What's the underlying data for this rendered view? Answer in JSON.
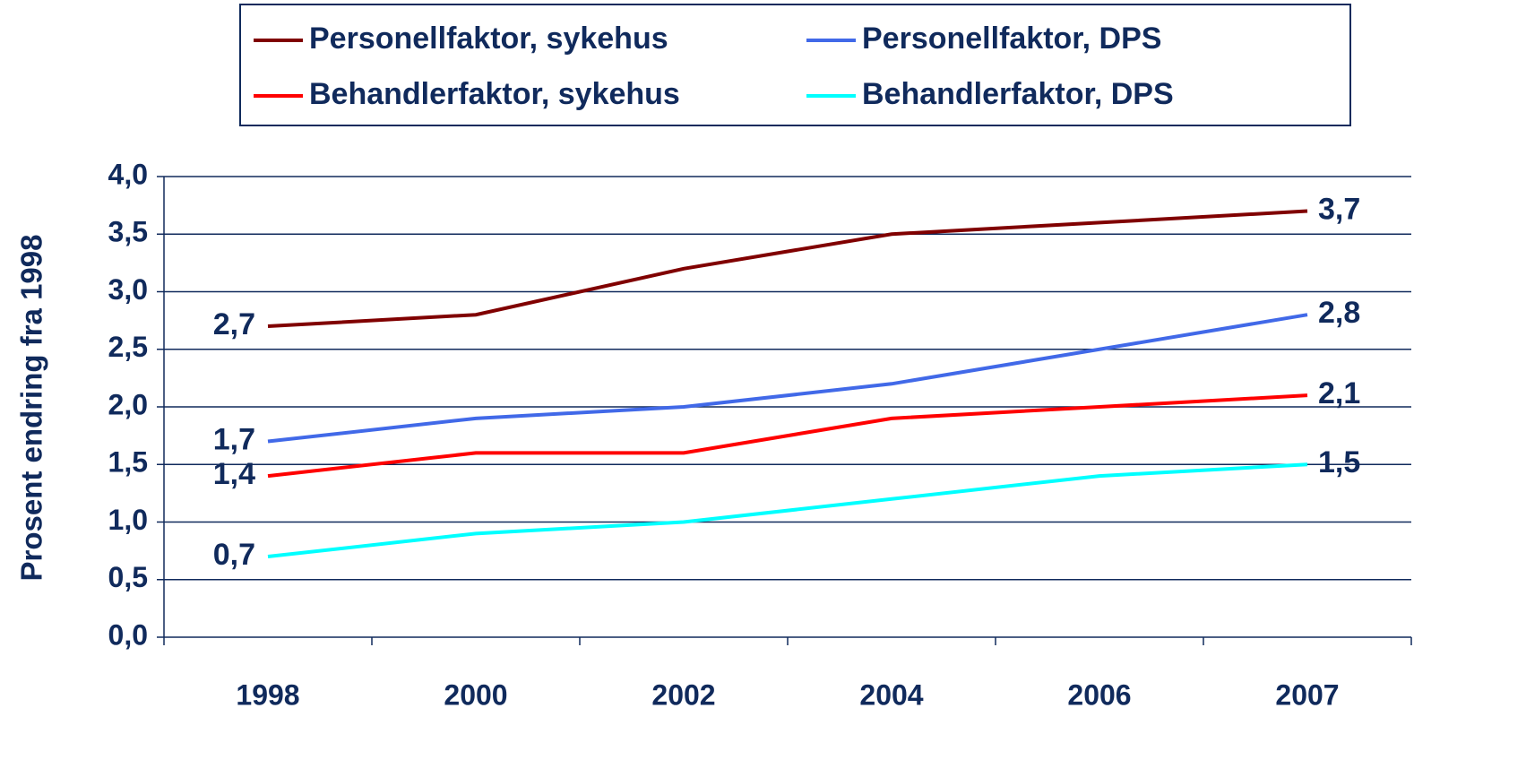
{
  "chart_data": {
    "type": "line",
    "y_label": "Prosent endring fra 1998",
    "categories": [
      "1998",
      "2000",
      "2002",
      "2004",
      "2006",
      "2007"
    ],
    "series": [
      {
        "name": "Personellfaktor, sykehus",
        "color": "#800000",
        "values": [
          2.7,
          2.8,
          3.2,
          3.5,
          3.6,
          3.7
        ],
        "value_labels": [
          "2,7",
          null,
          null,
          null,
          null,
          "3,7"
        ]
      },
      {
        "name": "Personellfaktor, DPS",
        "color": "#4169e8",
        "values": [
          1.7,
          1.9,
          2.0,
          2.2,
          2.5,
          2.8
        ],
        "value_labels": [
          "1,7",
          null,
          null,
          null,
          null,
          "2,8"
        ]
      },
      {
        "name": "Behandlerfaktor, sykehus",
        "color": "#ff0000",
        "values": [
          1.4,
          1.6,
          1.6,
          1.9,
          2.0,
          2.1
        ],
        "value_labels": [
          "1,4",
          null,
          null,
          null,
          null,
          "2,1"
        ]
      },
      {
        "name": "Behandlerfaktor, DPS",
        "color": "#00ffff",
        "values": [
          0.7,
          0.9,
          1.0,
          1.2,
          1.4,
          1.5
        ],
        "value_labels": [
          "0,7",
          null,
          null,
          null,
          null,
          "1,5"
        ]
      }
    ],
    "ylim": [
      0,
      4
    ],
    "yticks": [
      {
        "value": 0,
        "label": "0,0"
      },
      {
        "value": 0.5,
        "label": "0,5"
      },
      {
        "value": 1,
        "label": "1,0"
      },
      {
        "value": 1.5,
        "label": "1,5"
      },
      {
        "value": 2,
        "label": "2,0"
      },
      {
        "value": 2.5,
        "label": "2,5"
      },
      {
        "value": 3,
        "label": "3,0"
      },
      {
        "value": 3.5,
        "label": "3,5"
      },
      {
        "value": 4,
        "label": "4,0"
      }
    ],
    "grid": true,
    "legend": "top"
  }
}
